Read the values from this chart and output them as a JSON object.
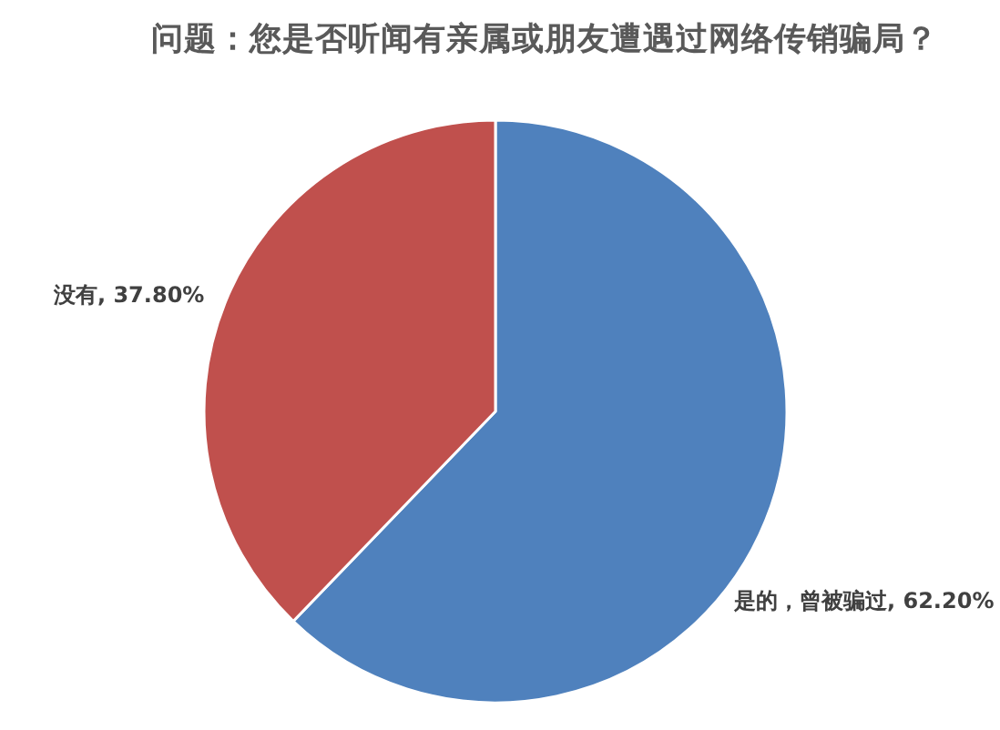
{
  "chart_data": {
    "type": "pie",
    "title": "问题：您是否听闻有亲属或朋友遭遇过网络传销骗局？",
    "categories": [
      "是的，曾被骗过",
      "没有"
    ],
    "values": [
      62.2,
      37.8
    ],
    "colors": [
      "#4f81bd",
      "#c0504d"
    ],
    "value_labels": [
      "62.20%",
      "37.80%"
    ],
    "legend": false
  }
}
